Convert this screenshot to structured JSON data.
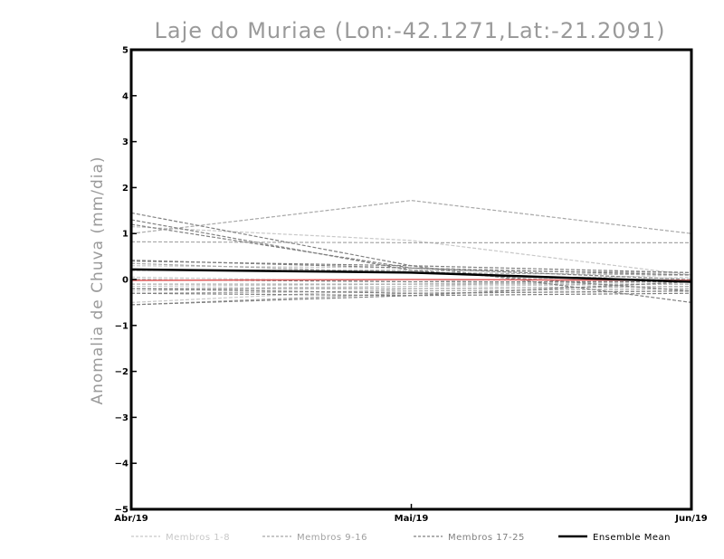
{
  "chart_data": {
    "type": "line",
    "title": "Laje do Muriae (Lon:-42.1271,Lat:-21.2091)",
    "xlabel": "",
    "ylabel": "Anomalia de Chuva (mm/dia)",
    "categories": [
      "Abr/19",
      "Mai/19",
      "Jun/19"
    ],
    "ylim": [
      -5,
      5
    ],
    "yticks": [
      5,
      4,
      3,
      2,
      1,
      0,
      -1,
      -2,
      -3,
      -4,
      -5
    ],
    "ytick_labels": [
      "5",
      "4",
      "3",
      "2",
      "1",
      "0",
      "−1",
      "−2",
      "−3",
      "−4",
      "−5"
    ],
    "grid": false,
    "colors": {
      "m1_8": "#c8c8c8",
      "m9_16": "#a8a8a8",
      "m17_25": "#808080",
      "mean": "#000000",
      "observed": "#e05a5a"
    },
    "legend": [
      {
        "label": "Membros 1-8",
        "group": "m1_8"
      },
      {
        "label": "Membros 9-16",
        "group": "m9_16"
      },
      {
        "label": "Membros 17-25",
        "group": "m17_25"
      },
      {
        "label": "Ensemble Mean",
        "group": "mean"
      }
    ],
    "series": [
      {
        "name": "m1",
        "group": "m1_8",
        "values": [
          1.15,
          0.85,
          0.1
        ]
      },
      {
        "name": "m2",
        "group": "m1_8",
        "values": [
          0.3,
          0.25,
          0.1
        ]
      },
      {
        "name": "m3",
        "group": "m1_8",
        "values": [
          0.05,
          -0.05,
          0.1
        ]
      },
      {
        "name": "m4",
        "group": "m1_8",
        "values": [
          -0.1,
          -0.1,
          0.0
        ]
      },
      {
        "name": "m5",
        "group": "m1_8",
        "values": [
          -0.15,
          -0.1,
          -0.05
        ]
      },
      {
        "name": "m6",
        "group": "m1_8",
        "values": [
          -0.2,
          -0.15,
          -0.1
        ]
      },
      {
        "name": "m7",
        "group": "m1_8",
        "values": [
          -0.25,
          -0.15,
          0.05
        ]
      },
      {
        "name": "m8",
        "group": "m1_8",
        "values": [
          -0.5,
          -0.2,
          -0.15
        ]
      },
      {
        "name": "m9",
        "group": "m9_16",
        "values": [
          1.0,
          1.72,
          1.0
        ]
      },
      {
        "name": "m10",
        "group": "m9_16",
        "values": [
          0.82,
          0.8,
          0.8
        ]
      },
      {
        "name": "m11",
        "group": "m9_16",
        "values": [
          0.35,
          0.15,
          0.1
        ]
      },
      {
        "name": "m12",
        "group": "m9_16",
        "values": [
          0.2,
          0.2,
          0.15
        ]
      },
      {
        "name": "m13",
        "group": "m9_16",
        "values": [
          -0.1,
          -0.1,
          -0.1
        ]
      },
      {
        "name": "m14",
        "group": "m9_16",
        "values": [
          -0.2,
          -0.2,
          -0.15
        ]
      },
      {
        "name": "m15",
        "group": "m9_16",
        "values": [
          -0.3,
          -0.25,
          -0.2
        ]
      },
      {
        "name": "m16",
        "group": "m9_16",
        "values": [
          -0.55,
          -0.3,
          -0.25
        ]
      },
      {
        "name": "m17",
        "group": "m17_25",
        "values": [
          1.45,
          0.3,
          -0.5
        ]
      },
      {
        "name": "m18",
        "group": "m17_25",
        "values": [
          1.3,
          0.2,
          -0.25
        ]
      },
      {
        "name": "m19",
        "group": "m17_25",
        "values": [
          1.2,
          0.25,
          0.0
        ]
      },
      {
        "name": "m20",
        "group": "m17_25",
        "values": [
          0.42,
          0.25,
          0.1
        ]
      },
      {
        "name": "m21",
        "group": "m17_25",
        "values": [
          0.4,
          0.3,
          0.15
        ]
      },
      {
        "name": "m22",
        "group": "m17_25",
        "values": [
          0.0,
          -0.05,
          -0.05
        ]
      },
      {
        "name": "m23",
        "group": "m17_25",
        "values": [
          -0.2,
          -0.3,
          -0.25
        ]
      },
      {
        "name": "m24",
        "group": "m17_25",
        "values": [
          -0.3,
          -0.35,
          -0.3
        ]
      },
      {
        "name": "m25",
        "group": "m17_25",
        "values": [
          -0.55,
          -0.35,
          -0.05
        ]
      },
      {
        "name": "Observado",
        "group": "observed",
        "values": [
          -0.02,
          0.0,
          -0.02
        ]
      },
      {
        "name": "Ensemble Mean",
        "group": "mean",
        "values": [
          0.22,
          0.15,
          -0.05
        ]
      }
    ]
  }
}
